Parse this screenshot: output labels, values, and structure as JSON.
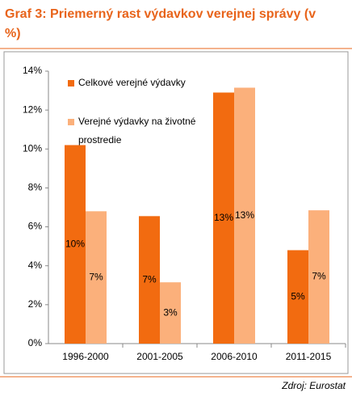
{
  "chart_data": {
    "type": "bar",
    "title": "Graf 3: Priemerný  rast výdavkov verejnej správy (v %)",
    "categories": [
      "1996-2000",
      "2001-2005",
      "2006-2010",
      "2011-2015"
    ],
    "series": [
      {
        "name": "Celkové verejné výdavky",
        "color": "#f26b10",
        "values": [
          10.2,
          6.55,
          12.9,
          4.8
        ],
        "value_labels": [
          "10%",
          "7%",
          "13%",
          "5%"
        ]
      },
      {
        "name": "Verejné výdavky na životné prostredie",
        "color": "#fbb07b",
        "values": [
          6.8,
          3.15,
          13.15,
          6.85
        ],
        "value_labels": [
          "7%",
          "3%",
          "13%",
          "7%"
        ]
      }
    ],
    "ylim": [
      0,
      14
    ],
    "yticks": [
      {
        "value": 0,
        "label": "0%"
      },
      {
        "value": 2,
        "label": "2%"
      },
      {
        "value": 4,
        "label": "4%"
      },
      {
        "value": 6,
        "label": "6%"
      },
      {
        "value": 8,
        "label": "8%"
      },
      {
        "value": 10,
        "label": "10%"
      },
      {
        "value": 12,
        "label": "12%"
      },
      {
        "value": 14,
        "label": "14%"
      }
    ],
    "grid": false,
    "source": "Zdroj: Eurostat"
  }
}
